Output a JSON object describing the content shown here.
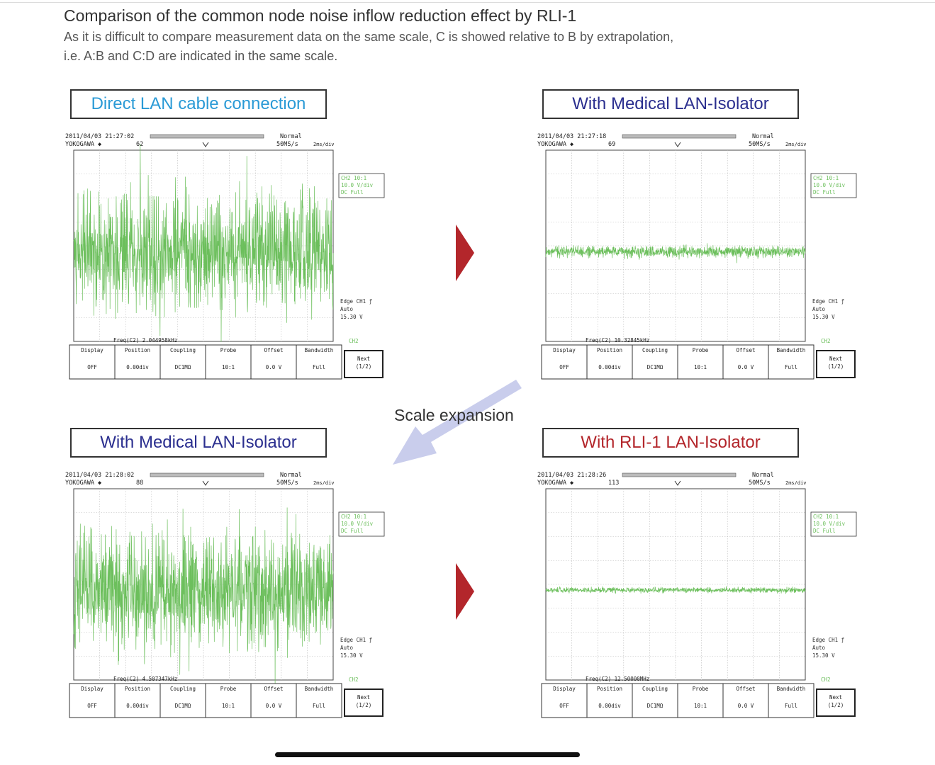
{
  "title": "Comparison of the common node noise inflow reduction effect by RLI-1",
  "subtitle_line1": "As it is difficult to compare measurement data on the same scale, C is showed relative to B by extrapolation,",
  "subtitle_line2": "i.e. A:B and C:D are indicated in the same scale.",
  "scale_label": "Scale expansion",
  "colors": {
    "header_a": "#2a9ad6",
    "header_b": "#2b2f8f",
    "header_c": "#2b2f8f",
    "header_d": "#b3262b",
    "trace": "#6cbf5c",
    "arrow": "#b3262b",
    "scale_arrow": "#c9cdec"
  },
  "panels": [
    {
      "id": "A",
      "header": "Direct LAN cable connection",
      "amplitude": 0.85,
      "seed": 11,
      "timestamp": "2011/04/03 21:27:02",
      "count": "62",
      "freq": "Freq(C2)  2.044958kHz"
    },
    {
      "id": "B",
      "header": "With Medical LAN-Isolator",
      "amplitude": 0.09,
      "seed": 23,
      "timestamp": "2011/04/03 21:27:18",
      "count": "69",
      "freq": "Freq(C2)  10.32845kHz"
    },
    {
      "id": "C",
      "header": "With Medical LAN-Isolator",
      "amplitude": 0.85,
      "seed": 37,
      "timestamp": "2011/04/03 21:28:02",
      "count": "88",
      "freq": "Freq(C2)  4.507347kHz"
    },
    {
      "id": "D",
      "header": "With RLI-1 LAN-Isolator",
      "amplitude": 0.04,
      "seed": 51,
      "timestamp": "2011/04/03 21:28:26",
      "count": "113",
      "freq": "Freq(C2)  12.50000MHz"
    }
  ],
  "scope": {
    "brand": "YOKOGAWA ◆",
    "mode": "Normal",
    "rate": "50MS/s",
    "scale": "2ms/div",
    "ch_info": [
      "CH2  10:1",
      "10.0 V/div",
      "DC    Full"
    ],
    "trigger": [
      "Edge  CH1  ƒ",
      "Auto",
      "15.30 V"
    ],
    "ch2": "CH2",
    "menu_top": [
      "Display",
      "Position",
      "Coupling",
      "Probe",
      "Offset",
      "Bandwidth"
    ],
    "menu_bottom": [
      "OFF",
      "0.00div",
      "DC1MΩ",
      "10:1",
      "0.0 V",
      "Full"
    ],
    "next": [
      "Next",
      "(1/2)"
    ]
  }
}
